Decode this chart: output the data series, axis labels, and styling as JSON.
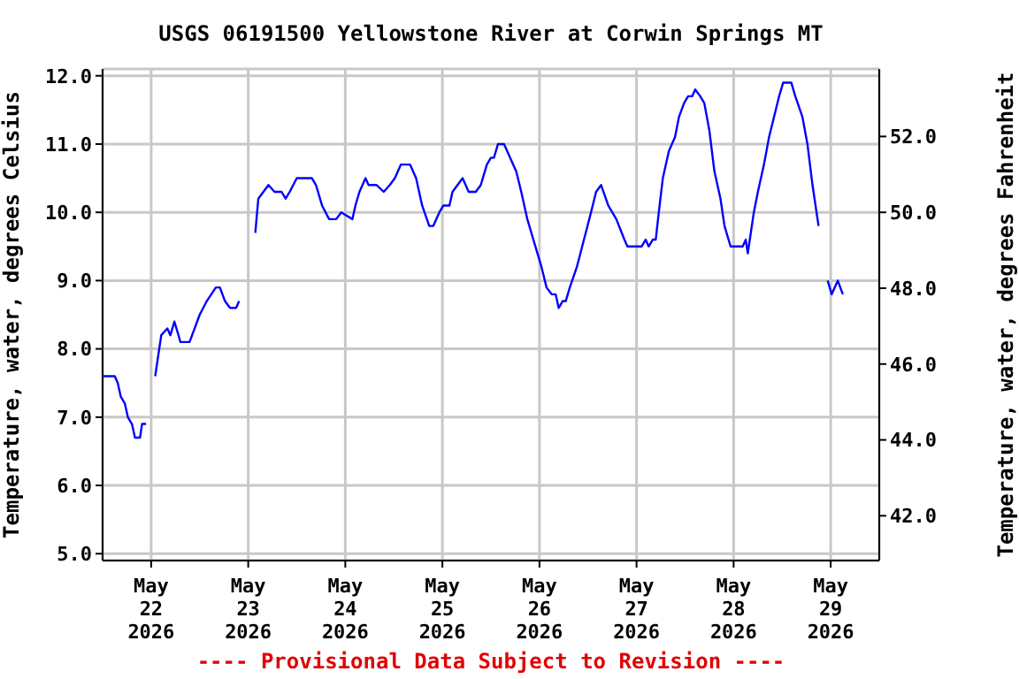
{
  "chart_data": {
    "type": "line",
    "title": "USGS 06191500 Yellowstone River at Corwin Springs MT",
    "ylabel": "Temperature, water, degrees Celsius",
    "y2label": "Temperature, water, degrees Fahrenheit",
    "annotations": [
      "---- Provisional Data Subject to Revision ----"
    ],
    "xlim": [
      "2026-05-21T12:00",
      "2026-05-29T12:00"
    ],
    "xticks": [
      {
        "value": "2026-05-22",
        "label": "May\n22\n2026"
      },
      {
        "value": "2026-05-23",
        "label": "May\n23\n2026"
      },
      {
        "value": "2026-05-24",
        "label": "May\n24\n2026"
      },
      {
        "value": "2026-05-25",
        "label": "May\n25\n2026"
      },
      {
        "value": "2026-05-26",
        "label": "May\n26\n2026"
      },
      {
        "value": "2026-05-27",
        "label": "May\n27\n2026"
      },
      {
        "value": "2026-05-28",
        "label": "May\n28\n2026"
      },
      {
        "value": "2026-05-29",
        "label": "May\n29\n2026"
      }
    ],
    "ylim": [
      4.9,
      12.1
    ],
    "yticks": [
      {
        "value": 5,
        "label": "5.0"
      },
      {
        "value": 6,
        "label": "6.0"
      },
      {
        "value": 7,
        "label": "7.0"
      },
      {
        "value": 8,
        "label": "8.0"
      },
      {
        "value": 9,
        "label": "9.0"
      },
      {
        "value": 10,
        "label": "10.0"
      },
      {
        "value": 11,
        "label": "11.0"
      },
      {
        "value": 12,
        "label": "12.0"
      }
    ],
    "y2lim": [
      40.82,
      53.78
    ],
    "y2ticks": [
      {
        "value": 42,
        "label": "42.0"
      },
      {
        "value": 44,
        "label": "44.0"
      },
      {
        "value": 46,
        "label": "46.0"
      },
      {
        "value": 48,
        "label": "48.0"
      },
      {
        "value": 50,
        "label": "50.0"
      },
      {
        "value": 52,
        "label": "52.0"
      }
    ],
    "grid": true,
    "series": [
      {
        "color": "#0000ff",
        "x": [
          "2026-05-21T12:15",
          "2026-05-21T15:00",
          "2026-05-21T15:45",
          "2026-05-21T16:30",
          "2026-05-21T17:30",
          "2026-05-21T18:15",
          "2026-05-21T19:15",
          "2026-05-21T20:00",
          "2026-05-21T21:15",
          "2026-05-21T21:45",
          "2026-05-21T22:45",
          "2026-05-22T00:00",
          "2026-05-22T01:00",
          "2026-05-22T02:30",
          "2026-05-22T04:00",
          "2026-05-22T04:45",
          "2026-05-22T05:45",
          "2026-05-22T07:15",
          "2026-05-22T09:30",
          "2026-05-22T12:00",
          "2026-05-22T13:45",
          "2026-05-22T16:00",
          "2026-05-22T17:00",
          "2026-05-22T18:15",
          "2026-05-22T19:30",
          "2026-05-22T21:00",
          "2026-05-22T21:45",
          "2026-05-22T23:45",
          "2026-05-23T01:45",
          "2026-05-23T02:30",
          "2026-05-23T05:00",
          "2026-05-23T06:30",
          "2026-05-23T08:15",
          "2026-05-23T09:15",
          "2026-05-23T10:15",
          "2026-05-23T12:00",
          "2026-05-23T15:45",
          "2026-05-23T16:45",
          "2026-05-23T18:15",
          "2026-05-23T20:00",
          "2026-05-23T21:45",
          "2026-05-23T23:00",
          "2026-05-24T01:45",
          "2026-05-24T02:30",
          "2026-05-24T03:30",
          "2026-05-24T05:00",
          "2026-05-24T05:45",
          "2026-05-24T07:45",
          "2026-05-24T09:30",
          "2026-05-24T11:00",
          "2026-05-24T12:15",
          "2026-05-24T13:45",
          "2026-05-24T16:00",
          "2026-05-24T17:30",
          "2026-05-24T19:00",
          "2026-05-24T20:45",
          "2026-05-24T21:45",
          "2026-05-24T23:15",
          "2026-05-25T00:15",
          "2026-05-25T01:45",
          "2026-05-25T02:30",
          "2026-05-25T05:00",
          "2026-05-25T05:45",
          "2026-05-25T06:30",
          "2026-05-25T08:15",
          "2026-05-25T09:30",
          "2026-05-25T11:00",
          "2026-05-25T12:00",
          "2026-05-25T12:45",
          "2026-05-25T13:45",
          "2026-05-25T15:15",
          "2026-05-25T16:45",
          "2026-05-25T18:15",
          "2026-05-25T19:30",
          "2026-05-25T21:00",
          "2026-05-25T22:30",
          "2026-05-26T00:30",
          "2026-05-26T01:45",
          "2026-05-26T03:00",
          "2026-05-26T04:00",
          "2026-05-26T04:45",
          "2026-05-26T05:45",
          "2026-05-26T06:30",
          "2026-05-26T07:30",
          "2026-05-26T09:15",
          "2026-05-26T11:00",
          "2026-05-26T12:45",
          "2026-05-26T14:00",
          "2026-05-26T15:15",
          "2026-05-26T17:00",
          "2026-05-26T19:00",
          "2026-05-26T21:00",
          "2026-05-26T21:45",
          "2026-05-27T01:15",
          "2026-05-27T02:15",
          "2026-05-27T03:00",
          "2026-05-27T04:00",
          "2026-05-27T04:45",
          "2026-05-27T05:30",
          "2026-05-27T06:30",
          "2026-05-27T08:00",
          "2026-05-27T09:30",
          "2026-05-27T10:30",
          "2026-05-27T11:45",
          "2026-05-27T12:45",
          "2026-05-27T13:45",
          "2026-05-27T14:30",
          "2026-05-27T15:45",
          "2026-05-27T16:45",
          "2026-05-27T18:00",
          "2026-05-27T19:15",
          "2026-05-27T20:45",
          "2026-05-27T21:45",
          "2026-05-27T23:15",
          "2026-05-28T02:15",
          "2026-05-28T03:00",
          "2026-05-28T03:30",
          "2026-05-28T05:00",
          "2026-05-28T06:00",
          "2026-05-28T07:30",
          "2026-05-28T08:45",
          "2026-05-28T10:00",
          "2026-05-28T11:15",
          "2026-05-28T12:15",
          "2026-05-28T14:15",
          "2026-05-28T15:15",
          "2026-05-28T17:00",
          "2026-05-28T18:15",
          "2026-05-28T19:30",
          "2026-05-28T21:00",
          "2026-05-28T22:00",
          "2026-05-28T23:15",
          "2026-05-29T00:15",
          "2026-05-29T01:45",
          "2026-05-29T03:00"
        ],
        "values": [
          7.6,
          7.6,
          7.5,
          7.3,
          7.2,
          7.0,
          6.9,
          6.7,
          6.7,
          6.9,
          6.9,
          null,
          7.6,
          8.2,
          8.3,
          8.2,
          8.4,
          8.1,
          8.1,
          8.5,
          8.7,
          8.9,
          8.9,
          8.7,
          8.6,
          8.6,
          8.7,
          null,
          9.7,
          10.2,
          10.4,
          10.3,
          10.3,
          10.2,
          10.3,
          10.5,
          10.5,
          10.4,
          10.1,
          9.9,
          9.9,
          10.0,
          9.9,
          10.1,
          10.3,
          10.5,
          10.4,
          10.4,
          10.3,
          10.4,
          10.5,
          10.7,
          10.7,
          10.5,
          10.1,
          9.8,
          9.8,
          10.0,
          10.1,
          10.1,
          10.3,
          10.5,
          10.4,
          10.3,
          10.3,
          10.4,
          10.7,
          10.8,
          10.8,
          11.0,
          11.0,
          10.8,
          10.6,
          10.3,
          9.9,
          9.6,
          9.2,
          8.9,
          8.8,
          8.8,
          8.6,
          8.7,
          8.7,
          8.9,
          9.2,
          9.6,
          10.0,
          10.3,
          10.4,
          10.1,
          9.9,
          9.6,
          9.5,
          9.5,
          9.6,
          9.5,
          9.6,
          9.6,
          10.0,
          10.5,
          10.9,
          11.1,
          11.4,
          11.6,
          11.7,
          11.7,
          11.8,
          11.7,
          11.6,
          11.2,
          10.6,
          10.2,
          9.8,
          9.5,
          9.5,
          9.6,
          9.4,
          10.0,
          10.3,
          10.7,
          11.1,
          11.4,
          11.7,
          11.9,
          11.9,
          11.7,
          11.4,
          11.0,
          10.4,
          9.8,
          null,
          9.0,
          8.8,
          9.0,
          8.8
        ]
      }
    ]
  }
}
